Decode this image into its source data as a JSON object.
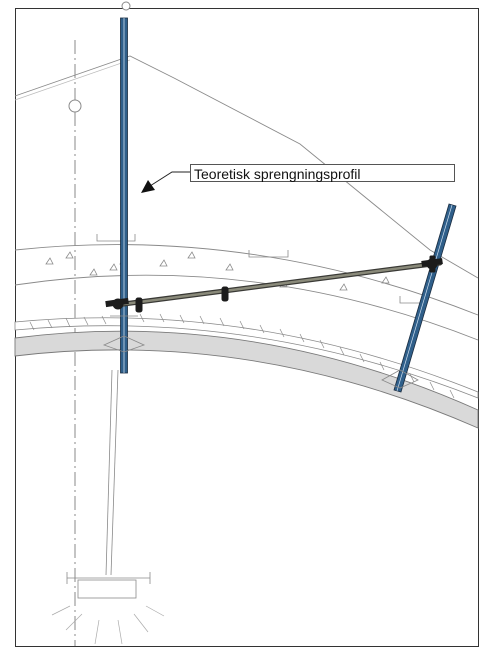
{
  "diagram": {
    "label": "Teoretisk sprengningsprofil",
    "colors": {
      "bolt": "#2f5f8a",
      "bolt_edge": "#1a2c40",
      "line": "#8a8a8a",
      "concrete_band": "#d9d9d9",
      "tie_rod": "#5e5e54",
      "clamp": "#1c1c1c"
    }
  }
}
